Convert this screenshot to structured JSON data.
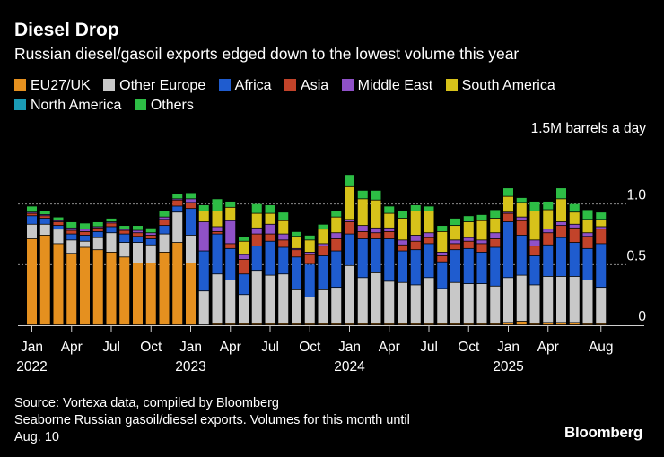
{
  "title": "Diesel Drop",
  "subtitle": "Russian diesel/gasoil exports edged down to the lowest volume this year",
  "legend": [
    {
      "label": "EU27/UK",
      "color": "#e5901f"
    },
    {
      "label": "Other Europe",
      "color": "#c8c8c8"
    },
    {
      "label": "Africa",
      "color": "#1f5ccf"
    },
    {
      "label": "Asia",
      "color": "#c2432a"
    },
    {
      "label": "Middle East",
      "color": "#8f51c7"
    },
    {
      "label": "South America",
      "color": "#d7c21a"
    },
    {
      "label": "North America",
      "color": "#1a9bb5"
    },
    {
      "label": "Others",
      "color": "#2dbd45"
    }
  ],
  "footer": {
    "source": "Source: Vortexa data, compiled by Bloomberg",
    "note_line1": "Seaborne Russian gasoil/diesel exports. Volumes for this month until",
    "note_line2": "Aug. 10"
  },
  "brand": "Bloomberg",
  "chart_data": {
    "type": "bar",
    "stacked": true,
    "title": "Diesel Drop",
    "ylabel": "1.5M barrels a day",
    "ylim": [
      0,
      1.5
    ],
    "yticks": [
      0,
      0.5,
      1.0
    ],
    "ytick_labels": [
      "0",
      "0.5",
      "1.0"
    ],
    "x_tick_labels": [
      {
        "index": 0,
        "month": "Jan",
        "year": "2022"
      },
      {
        "index": 3,
        "month": "Apr",
        "year": ""
      },
      {
        "index": 6,
        "month": "Jul",
        "year": ""
      },
      {
        "index": 9,
        "month": "Oct",
        "year": ""
      },
      {
        "index": 12,
        "month": "Jan",
        "year": "2023"
      },
      {
        "index": 15,
        "month": "Apr",
        "year": ""
      },
      {
        "index": 18,
        "month": "Jul",
        "year": ""
      },
      {
        "index": 21,
        "month": "Oct",
        "year": ""
      },
      {
        "index": 24,
        "month": "Jan",
        "year": "2024"
      },
      {
        "index": 27,
        "month": "Apr",
        "year": ""
      },
      {
        "index": 30,
        "month": "Jul",
        "year": ""
      },
      {
        "index": 33,
        "month": "Oct",
        "year": ""
      },
      {
        "index": 36,
        "month": "Jan",
        "year": "2025"
      },
      {
        "index": 39,
        "month": "Apr",
        "year": ""
      },
      {
        "index": 43,
        "month": "Aug",
        "year": ""
      }
    ],
    "categories": [
      "2022-01",
      "2022-02",
      "2022-03",
      "2022-04",
      "2022-05",
      "2022-06",
      "2022-07",
      "2022-08",
      "2022-09",
      "2022-10",
      "2022-11",
      "2022-12",
      "2023-01",
      "2023-02",
      "2023-03",
      "2023-04",
      "2023-05",
      "2023-06",
      "2023-07",
      "2023-08",
      "2023-09",
      "2023-10",
      "2023-11",
      "2023-12",
      "2024-01",
      "2024-02",
      "2024-03",
      "2024-04",
      "2024-05",
      "2024-06",
      "2024-07",
      "2024-08",
      "2024-09",
      "2024-10",
      "2024-11",
      "2024-12",
      "2025-01",
      "2025-02",
      "2025-03",
      "2025-04",
      "2025-05",
      "2025-06",
      "2025-07",
      "2025-08"
    ],
    "series": [
      {
        "name": "EU27/UK",
        "values": [
          0.71,
          0.74,
          0.67,
          0.59,
          0.64,
          0.62,
          0.6,
          0.56,
          0.51,
          0.51,
          0.6,
          0.68,
          0.51,
          0.0,
          0.01,
          0.01,
          0.01,
          0.01,
          0.01,
          0.01,
          0.01,
          0.01,
          0.01,
          0.01,
          0.01,
          0.01,
          0.01,
          0.01,
          0.01,
          0.01,
          0.01,
          0.01,
          0.01,
          0.01,
          0.01,
          0.01,
          0.02,
          0.03,
          0.01,
          0.02,
          0.02,
          0.02,
          0.01,
          0.01
        ]
      },
      {
        "name": "Other Europe",
        "values": [
          0.12,
          0.09,
          0.12,
          0.11,
          0.05,
          0.1,
          0.16,
          0.12,
          0.17,
          0.15,
          0.15,
          0.25,
          0.23,
          0.28,
          0.41,
          0.36,
          0.24,
          0.44,
          0.4,
          0.41,
          0.28,
          0.22,
          0.28,
          0.3,
          0.48,
          0.38,
          0.42,
          0.35,
          0.34,
          0.32,
          0.38,
          0.29,
          0.34,
          0.33,
          0.33,
          0.31,
          0.37,
          0.38,
          0.32,
          0.38,
          0.38,
          0.38,
          0.36,
          0.3
        ]
      },
      {
        "name": "Africa",
        "values": [
          0.07,
          0.05,
          0.03,
          0.05,
          0.05,
          0.05,
          0.05,
          0.07,
          0.05,
          0.05,
          0.07,
          0.05,
          0.22,
          0.33,
          0.33,
          0.26,
          0.17,
          0.2,
          0.28,
          0.22,
          0.27,
          0.27,
          0.28,
          0.3,
          0.26,
          0.32,
          0.28,
          0.35,
          0.26,
          0.29,
          0.28,
          0.22,
          0.27,
          0.29,
          0.26,
          0.32,
          0.46,
          0.33,
          0.24,
          0.26,
          0.32,
          0.28,
          0.26,
          0.36
        ]
      },
      {
        "name": "Asia",
        "values": [
          0.02,
          0.02,
          0.03,
          0.03,
          0.03,
          0.03,
          0.03,
          0.03,
          0.03,
          0.03,
          0.05,
          0.05,
          0.05,
          0.0,
          0.02,
          0.04,
          0.12,
          0.1,
          0.06,
          0.06,
          0.06,
          0.08,
          0.08,
          0.1,
          0.1,
          0.06,
          0.05,
          0.06,
          0.05,
          0.07,
          0.05,
          0.05,
          0.05,
          0.06,
          0.07,
          0.07,
          0.07,
          0.12,
          0.08,
          0.1,
          0.1,
          0.12,
          0.1,
          0.12
        ]
      },
      {
        "name": "Middle East",
        "values": [
          0.01,
          0.01,
          0.01,
          0.02,
          0.02,
          0.01,
          0.01,
          0.01,
          0.02,
          0.02,
          0.02,
          0.01,
          0.03,
          0.24,
          0.04,
          0.19,
          0.04,
          0.05,
          0.08,
          0.05,
          0.01,
          0.02,
          0.02,
          0.05,
          0.02,
          0.05,
          0.04,
          0.03,
          0.04,
          0.05,
          0.04,
          0.03,
          0.03,
          0.03,
          0.03,
          0.05,
          0.01,
          0.03,
          0.05,
          0.03,
          0.03,
          0.03,
          0.03,
          0.02
        ]
      },
      {
        "name": "South America",
        "values": [
          0.0,
          0.0,
          0.0,
          0.0,
          0.0,
          0.0,
          0.0,
          0.0,
          0.0,
          0.0,
          0.0,
          0.0,
          0.0,
          0.09,
          0.13,
          0.11,
          0.11,
          0.12,
          0.09,
          0.11,
          0.1,
          0.1,
          0.12,
          0.13,
          0.27,
          0.22,
          0.23,
          0.12,
          0.18,
          0.2,
          0.18,
          0.17,
          0.12,
          0.13,
          0.16,
          0.12,
          0.13,
          0.12,
          0.24,
          0.16,
          0.19,
          0.1,
          0.11,
          0.06
        ]
      },
      {
        "name": "North America",
        "values": [
          0.0,
          0.0,
          0.0,
          0.0,
          0.0,
          0.0,
          0.0,
          0.0,
          0.0,
          0.0,
          0.0,
          0.0,
          0.0,
          0.0,
          0.0,
          0.0,
          0.0,
          0.0,
          0.0,
          0.0,
          0.0,
          0.0,
          0.0,
          0.0,
          0.0,
          0.0,
          0.0,
          0.0,
          0.0,
          0.0,
          0.0,
          0.0,
          0.0,
          0.0,
          0.0,
          0.0,
          0.0,
          0.0,
          0.0,
          0.0,
          0.0,
          0.0,
          0.0,
          0.0
        ]
      },
      {
        "name": "Others",
        "values": [
          0.05,
          0.03,
          0.03,
          0.05,
          0.05,
          0.04,
          0.03,
          0.03,
          0.04,
          0.04,
          0.05,
          0.04,
          0.05,
          0.05,
          0.1,
          0.05,
          0.04,
          0.08,
          0.07,
          0.07,
          0.04,
          0.04,
          0.04,
          0.05,
          0.1,
          0.07,
          0.08,
          0.06,
          0.06,
          0.05,
          0.04,
          0.05,
          0.06,
          0.05,
          0.05,
          0.07,
          0.07,
          0.04,
          0.08,
          0.07,
          0.09,
          0.07,
          0.08,
          0.06
        ]
      }
    ]
  }
}
